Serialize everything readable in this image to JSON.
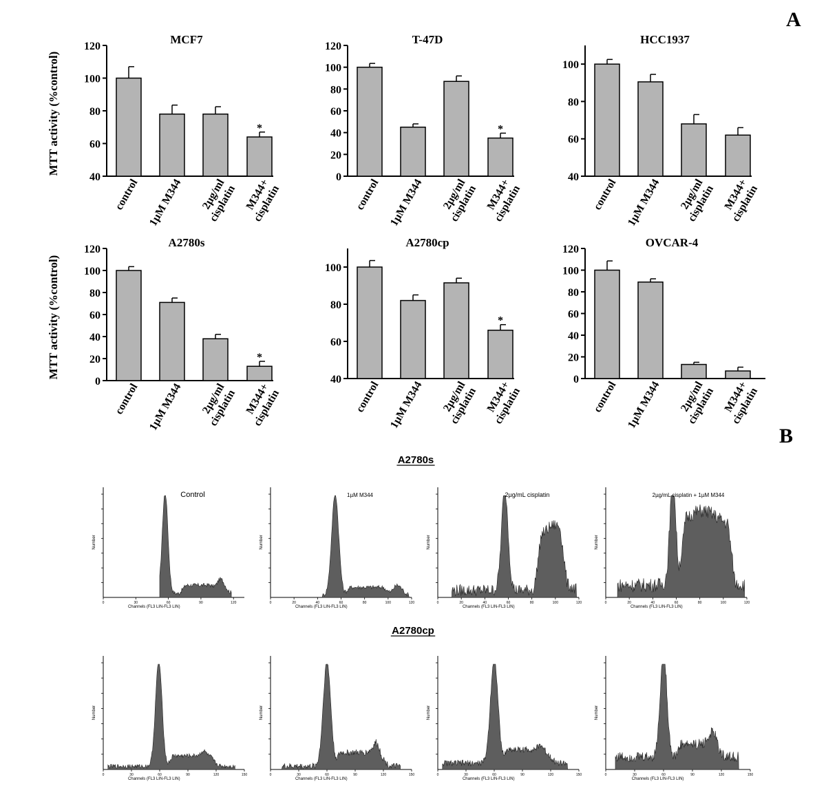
{
  "panel_labels": [
    "A",
    "B"
  ],
  "section_b": {
    "group_titles": [
      "A2780s",
      "A2780cp"
    ],
    "xlabel": "Channels (FL3 LIN-FL3 LIN)",
    "ylabel": "Number",
    "treatment_labels": [
      "Control",
      "1µM M344",
      "2µg/mL cisplatin",
      "2µg/mL cisplatin + 1µM M344"
    ]
  },
  "chart_data": [
    {
      "type": "bar",
      "title": "MCF7",
      "ylabel": "MTT activity (%control)",
      "ylim": [
        40,
        120
      ],
      "yticks": [
        40,
        60,
        80,
        100,
        120
      ],
      "categories": [
        [
          "control"
        ],
        [
          "1µM M344"
        ],
        [
          "2µg/ml",
          "cisplatin"
        ],
        [
          "M344+",
          "cisplatin"
        ]
      ],
      "values": [
        100,
        78,
        78,
        64
      ],
      "errors": [
        7,
        5.5,
        4.5,
        3
      ],
      "significance": [
        "",
        "",
        "",
        "*"
      ]
    },
    {
      "type": "bar",
      "title": "T-47D",
      "ylabel": "",
      "ylim": [
        0,
        120
      ],
      "yticks": [
        0,
        20,
        40,
        60,
        80,
        100,
        120
      ],
      "categories": [
        [
          "control"
        ],
        [
          "1µM M344"
        ],
        [
          "2µg/ml",
          "cisplatin"
        ],
        [
          "M344+",
          "cisplatin"
        ]
      ],
      "values": [
        100,
        45,
        87,
        35
      ],
      "errors": [
        3.5,
        3,
        5,
        4.5
      ],
      "significance": [
        "",
        "",
        "",
        "*"
      ]
    },
    {
      "type": "bar",
      "title": "HCC1937",
      "ylabel": "",
      "ylim": [
        40,
        110
      ],
      "yticks": [
        40,
        60,
        80,
        100
      ],
      "categories": [
        [
          "control"
        ],
        [
          "1µM M344"
        ],
        [
          "2µg/ml",
          "cisplatin"
        ],
        [
          "M344+",
          "cisplatin"
        ]
      ],
      "values": [
        100,
        90.5,
        68,
        62
      ],
      "errors": [
        2.5,
        4,
        5,
        4
      ],
      "significance": [
        "",
        "",
        "",
        ""
      ]
    },
    {
      "type": "bar",
      "title": "A2780s",
      "ylabel": "MTT activity (%control)",
      "ylim": [
        0,
        120
      ],
      "yticks": [
        0,
        20,
        40,
        60,
        80,
        100,
        120
      ],
      "categories": [
        [
          "control"
        ],
        [
          "1µM M344"
        ],
        [
          "2µg/ml",
          "cisplatin"
        ],
        [
          "M344+",
          "cisplatin"
        ]
      ],
      "values": [
        100,
        71,
        38,
        13
      ],
      "errors": [
        3.5,
        4,
        4,
        4.5
      ],
      "significance": [
        "",
        "",
        "",
        "*"
      ]
    },
    {
      "type": "bar",
      "title": "A2780cp",
      "ylabel": "",
      "ylim": [
        40,
        110
      ],
      "yticks": [
        40,
        60,
        80,
        100
      ],
      "categories": [
        [
          "control"
        ],
        [
          "1µM M344"
        ],
        [
          "2µg/ml",
          "cisplatin"
        ],
        [
          "M344+",
          "cisplatin"
        ]
      ],
      "values": [
        100,
        82,
        91.5,
        66
      ],
      "errors": [
        3.5,
        3,
        2.5,
        3
      ],
      "significance": [
        "",
        "",
        "",
        "*"
      ]
    },
    {
      "type": "bar",
      "title": "OVCAR-4",
      "ylabel": "",
      "ylim": [
        0,
        120
      ],
      "yticks": [
        0,
        20,
        40,
        60,
        80,
        100,
        120
      ],
      "categories": [
        [
          "control"
        ],
        [
          "1µM M344"
        ],
        [
          "2µg/ml",
          "cisplatin"
        ],
        [
          "M344+",
          "cisplatin"
        ]
      ],
      "values": [
        100,
        89,
        13,
        7
      ],
      "errors": [
        8.5,
        3,
        2,
        3.5
      ],
      "significance": [
        "",
        "",
        "",
        ""
      ]
    }
  ]
}
